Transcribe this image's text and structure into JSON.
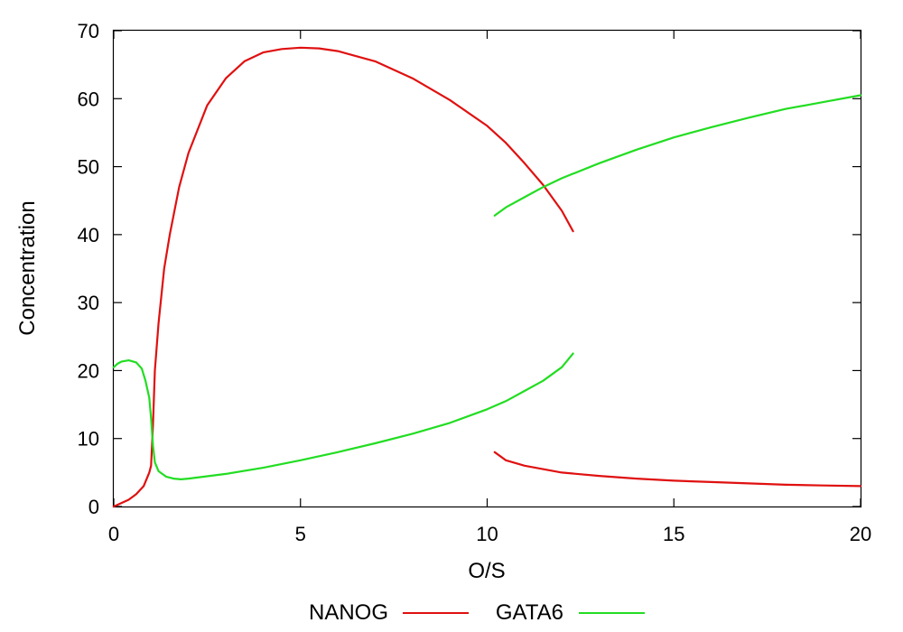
{
  "chart_data": {
    "type": "line",
    "title": "",
    "xlabel": "O/S",
    "ylabel": "Concentration",
    "xlim": [
      0,
      20
    ],
    "ylim": [
      0,
      70
    ],
    "xticks": [
      "0",
      "5",
      "10",
      "15",
      "20"
    ],
    "yticks": [
      "0",
      "10",
      "20",
      "30",
      "40",
      "50",
      "60",
      "70"
    ],
    "grid": false,
    "legend_position": "bottom-center",
    "series": [
      {
        "name": "NANOG",
        "color": "#e01010",
        "segments": [
          [
            [
              0,
              0
            ],
            [
              0.4,
              1
            ],
            [
              0.6,
              1.8
            ],
            [
              0.8,
              3
            ],
            [
              0.95,
              5
            ],
            [
              1,
              6
            ],
            [
              1.05,
              12
            ],
            [
              1.1,
              20
            ],
            [
              1.2,
              27
            ],
            [
              1.35,
              35
            ],
            [
              1.5,
              40
            ],
            [
              1.75,
              47
            ],
            [
              2,
              52
            ],
            [
              2.5,
              59
            ],
            [
              3,
              63
            ],
            [
              3.5,
              65.5
            ],
            [
              4,
              66.8
            ],
            [
              4.5,
              67.3
            ],
            [
              5,
              67.5
            ],
            [
              5.5,
              67.4
            ],
            [
              6,
              67
            ],
            [
              7,
              65.5
            ],
            [
              8,
              63
            ],
            [
              9,
              59.8
            ],
            [
              10,
              56
            ],
            [
              10.5,
              53.5
            ],
            [
              11,
              50.5
            ],
            [
              11.5,
              47.3
            ],
            [
              12,
              43.5
            ],
            [
              12.3,
              40.5
            ]
          ],
          [
            [
              10.2,
              8
            ],
            [
              10.5,
              6.8
            ],
            [
              11,
              6
            ],
            [
              12,
              5
            ],
            [
              13,
              4.5
            ],
            [
              14,
              4.1
            ],
            [
              15,
              3.8
            ],
            [
              16,
              3.6
            ],
            [
              17,
              3.4
            ],
            [
              18,
              3.2
            ],
            [
              19,
              3.1
            ],
            [
              20,
              3
            ]
          ]
        ]
      },
      {
        "name": "GATA6",
        "color": "#22dd22",
        "segments": [
          [
            [
              0,
              20.5
            ],
            [
              0.1,
              21
            ],
            [
              0.2,
              21.3
            ],
            [
              0.4,
              21.5
            ],
            [
              0.6,
              21.2
            ],
            [
              0.75,
              20.3
            ],
            [
              0.85,
              18.5
            ],
            [
              0.95,
              16
            ],
            [
              1,
              13
            ],
            [
              1.05,
              9
            ],
            [
              1.1,
              6.5
            ],
            [
              1.2,
              5.2
            ],
            [
              1.4,
              4.4
            ],
            [
              1.6,
              4.1
            ],
            [
              1.8,
              4
            ],
            [
              2,
              4.1
            ],
            [
              3,
              4.8
            ],
            [
              4,
              5.7
            ],
            [
              5,
              6.8
            ],
            [
              6,
              8
            ],
            [
              7,
              9.3
            ],
            [
              8,
              10.7
            ],
            [
              9,
              12.3
            ],
            [
              10,
              14.3
            ],
            [
              10.5,
              15.5
            ],
            [
              11,
              17
            ],
            [
              11.5,
              18.5
            ],
            [
              12,
              20.5
            ],
            [
              12.3,
              22.5
            ]
          ],
          [
            [
              10.2,
              42.8
            ],
            [
              10.5,
              44
            ],
            [
              11,
              45.5
            ],
            [
              11.5,
              47
            ],
            [
              12,
              48.3
            ],
            [
              13,
              50.5
            ],
            [
              14,
              52.5
            ],
            [
              15,
              54.3
            ],
            [
              16,
              55.8
            ],
            [
              17,
              57.2
            ],
            [
              18,
              58.5
            ],
            [
              19,
              59.5
            ],
            [
              20,
              60.5
            ]
          ]
        ]
      }
    ]
  }
}
